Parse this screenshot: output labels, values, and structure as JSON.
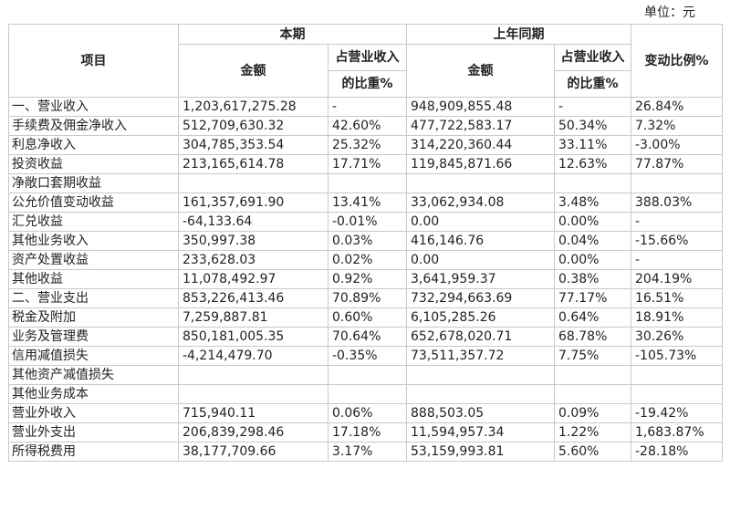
{
  "unit_label": "单位：元",
  "headers": {
    "item": "项目",
    "current_period": "本期",
    "prior_period": "上年同期",
    "amount": "金额",
    "share_line1": "占营业收入",
    "share_line2": "的比重%",
    "change": "变动比例%"
  },
  "rows": [
    [
      "一、营业收入",
      "1,203,617,275.28",
      "-",
      "948,909,855.48",
      "-",
      "26.84%"
    ],
    [
      "手续费及佣金净收入",
      "512,709,630.32",
      "42.60%",
      "477,722,583.17",
      "50.34%",
      "7.32%"
    ],
    [
      "利息净收入",
      "304,785,353.54",
      "25.32%",
      "314,220,360.44",
      "33.11%",
      "-3.00%"
    ],
    [
      "投资收益",
      "213,165,614.78",
      "17.71%",
      "119,845,871.66",
      "12.63%",
      "77.87%"
    ],
    [
      "净敞口套期收益",
      "",
      "",
      "",
      "",
      ""
    ],
    [
      "公允价值变动收益",
      "161,357,691.90",
      "13.41%",
      "33,062,934.08",
      "3.48%",
      "388.03%"
    ],
    [
      "汇兑收益",
      "-64,133.64",
      "-0.01%",
      "0.00",
      "0.00%",
      "-"
    ],
    [
      "其他业务收入",
      "350,997.38",
      "0.03%",
      "416,146.76",
      "0.04%",
      "-15.66%"
    ],
    [
      "资产处置收益",
      "233,628.03",
      "0.02%",
      "0.00",
      "0.00%",
      "-"
    ],
    [
      "其他收益",
      "11,078,492.97",
      "0.92%",
      "3,641,959.37",
      "0.38%",
      "204.19%"
    ],
    [
      "二、营业支出",
      "853,226,413.46",
      "70.89%",
      "732,294,663.69",
      "77.17%",
      "16.51%"
    ],
    [
      "税金及附加",
      "7,259,887.81",
      "0.60%",
      "6,105,285.26",
      "0.64%",
      "18.91%"
    ],
    [
      "业务及管理费",
      "850,181,005.35",
      "70.64%",
      "652,678,020.71",
      "68.78%",
      "30.26%"
    ],
    [
      "信用减值损失",
      "-4,214,479.70",
      "-0.35%",
      "73,511,357.72",
      "7.75%",
      "-105.73%"
    ],
    [
      "其他资产减值损失",
      "",
      "",
      "",
      "",
      ""
    ],
    [
      "其他业务成本",
      "",
      "",
      "",
      "",
      ""
    ],
    [
      "营业外收入",
      "715,940.11",
      "0.06%",
      "888,503.05",
      "0.09%",
      "-19.42%"
    ],
    [
      "营业外支出",
      "206,839,298.46",
      "17.18%",
      "11,594,957.34",
      "1.22%",
      "1,683.87%"
    ],
    [
      "所得税费用",
      "38,177,709.66",
      "3.17%",
      "53,159,993.81",
      "5.60%",
      "-28.18%"
    ]
  ]
}
